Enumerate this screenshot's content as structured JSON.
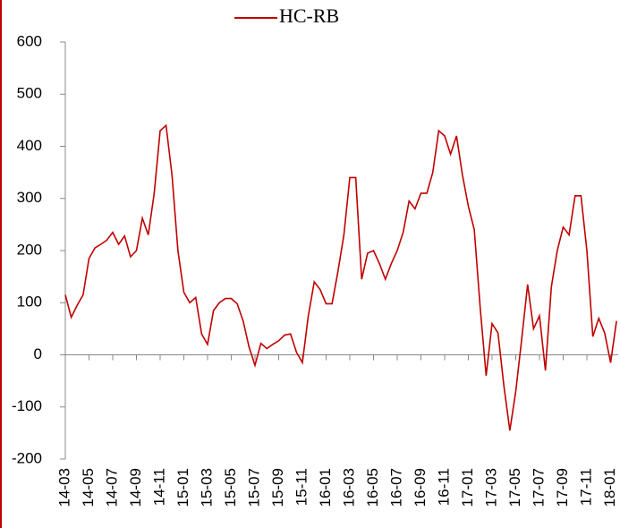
{
  "chart_data": {
    "type": "line",
    "categories": [
      "14-03",
      null,
      null,
      null,
      "14-05",
      null,
      null,
      null,
      "14-07",
      null,
      null,
      null,
      "14-09",
      null,
      null,
      null,
      "14-11",
      null,
      null,
      null,
      "15-01",
      null,
      null,
      null,
      "15-03",
      null,
      null,
      null,
      "15-05",
      null,
      null,
      null,
      "15-07",
      null,
      null,
      null,
      "15-09",
      null,
      null,
      null,
      "15-11",
      null,
      null,
      null,
      "16-01",
      null,
      null,
      null,
      "16-03",
      null,
      null,
      null,
      "16-05",
      null,
      null,
      null,
      "16-07",
      null,
      null,
      null,
      "16-09",
      null,
      null,
      null,
      "16-11",
      null,
      null,
      null,
      "17-01",
      null,
      null,
      null,
      "17-03",
      null,
      null,
      null,
      "17-05",
      null,
      null,
      null,
      "17-07",
      null,
      null,
      null,
      "17-09",
      null,
      null,
      null,
      "17-11",
      null,
      null,
      null,
      "18-01",
      null
    ],
    "series": [
      {
        "name": "HC-RB",
        "color": "#c00000",
        "values": [
          115,
          72,
          95,
          115,
          185,
          205,
          212,
          220,
          235,
          212,
          228,
          188,
          200,
          262,
          230,
          310,
          430,
          440,
          345,
          200,
          120,
          100,
          110,
          40,
          20,
          85,
          100,
          108,
          108,
          98,
          65,
          15,
          -20,
          22,
          12,
          20,
          27,
          38,
          40,
          5,
          -15,
          75,
          140,
          125,
          98,
          98,
          160,
          230,
          340,
          340,
          145,
          195,
          200,
          175,
          145,
          175,
          200,
          235,
          295,
          280,
          310,
          310,
          350,
          430,
          420,
          385,
          420,
          345,
          285,
          240,
          90,
          -40,
          60,
          42,
          -60,
          -145,
          -70,
          30,
          135,
          50,
          75,
          -30,
          130,
          200,
          245,
          230,
          305,
          305,
          200,
          35,
          70,
          42,
          -15,
          65
        ]
      }
    ],
    "ylim": [
      -200,
      600
    ],
    "yticks": [
      -200,
      -100,
      0,
      100,
      200,
      300,
      400,
      500,
      600
    ],
    "legend": "top"
  }
}
